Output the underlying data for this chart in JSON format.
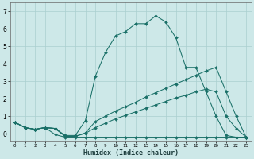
{
  "xlabel": "Humidex (Indice chaleur)",
  "xlim": [
    -0.5,
    23.5
  ],
  "ylim": [
    -0.4,
    7.5
  ],
  "xticks": [
    0,
    1,
    2,
    3,
    4,
    5,
    6,
    7,
    8,
    9,
    10,
    11,
    12,
    13,
    14,
    15,
    16,
    17,
    18,
    19,
    20,
    21,
    22,
    23
  ],
  "yticks": [
    0,
    1,
    2,
    3,
    4,
    5,
    6,
    7
  ],
  "bg_color": "#cde8e8",
  "line_color": "#1a7068",
  "grid_color": "#aacfcf",
  "lines": [
    {
      "x": [
        0,
        1,
        2,
        3,
        4,
        5,
        6,
        7,
        8,
        9,
        10,
        11,
        12,
        13,
        14,
        15,
        16,
        17,
        18,
        19,
        20,
        21,
        22,
        23
      ],
      "y": [
        0.65,
        0.35,
        0.25,
        0.35,
        0.3,
        -0.1,
        -0.1,
        0.75,
        3.3,
        4.65,
        5.6,
        5.85,
        6.3,
        6.3,
        6.75,
        6.4,
        5.5,
        3.8,
        3.8,
        2.4,
        1.0,
        -0.1,
        -0.2,
        -0.2
      ]
    },
    {
      "x": [
        0,
        1,
        2,
        3,
        4,
        5,
        6,
        7,
        8,
        9,
        10,
        11,
        12,
        13,
        14,
        15,
        16,
        17,
        18,
        19,
        20,
        21,
        22,
        23
      ],
      "y": [
        0.65,
        0.35,
        0.25,
        0.35,
        0.3,
        -0.15,
        -0.15,
        0.05,
        0.7,
        1.0,
        1.3,
        1.55,
        1.8,
        2.1,
        2.35,
        2.6,
        2.85,
        3.1,
        3.35,
        3.6,
        3.8,
        2.4,
        1.0,
        -0.2
      ]
    },
    {
      "x": [
        0,
        1,
        2,
        3,
        4,
        5,
        6,
        7,
        8,
        9,
        10,
        11,
        12,
        13,
        14,
        15,
        16,
        17,
        18,
        19,
        20,
        21,
        22,
        23
      ],
      "y": [
        0.65,
        0.35,
        0.25,
        0.35,
        -0.05,
        -0.2,
        -0.2,
        -0.2,
        -0.2,
        -0.2,
        -0.2,
        -0.2,
        -0.2,
        -0.2,
        -0.2,
        -0.2,
        -0.2,
        -0.2,
        -0.2,
        -0.2,
        -0.2,
        -0.2,
        -0.2,
        -0.2
      ]
    },
    {
      "x": [
        0,
        1,
        2,
        3,
        4,
        5,
        6,
        7,
        8,
        9,
        10,
        11,
        12,
        13,
        14,
        15,
        16,
        17,
        18,
        19,
        20,
        21,
        22,
        23
      ],
      "y": [
        0.65,
        0.35,
        0.25,
        0.35,
        0.3,
        -0.15,
        -0.15,
        0.02,
        0.35,
        0.6,
        0.85,
        1.05,
        1.25,
        1.45,
        1.65,
        1.85,
        2.05,
        2.2,
        2.4,
        2.55,
        2.4,
        1.0,
        0.3,
        -0.2
      ]
    }
  ]
}
